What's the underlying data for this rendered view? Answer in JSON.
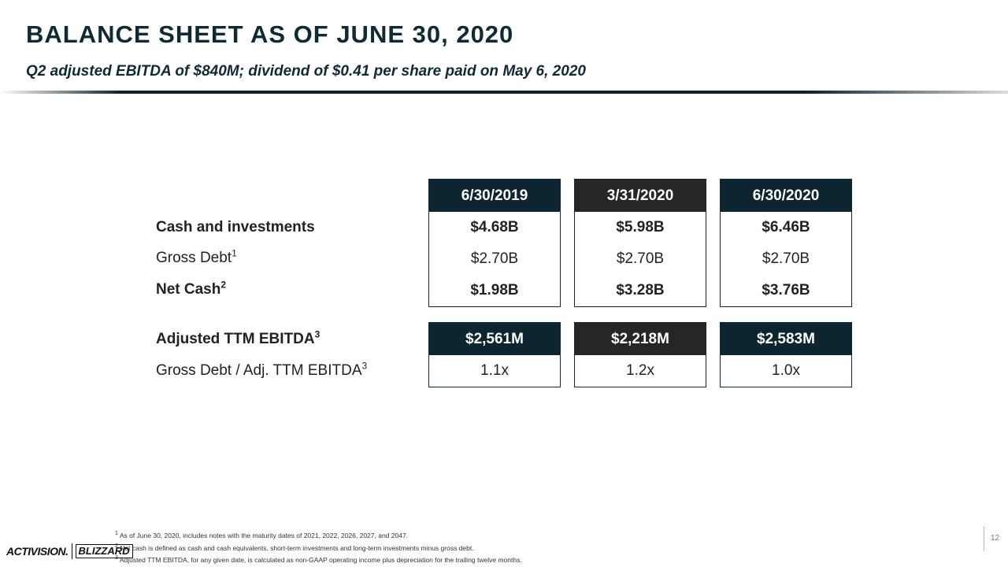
{
  "slide": {
    "title": "BALANCE SHEET AS OF JUNE 30, 2020",
    "subtitle": "Q2 adjusted EBITDA of $840M; dividend of $0.41 per share paid on May 6, 2020",
    "page_number": "12"
  },
  "colors": {
    "navy": "#0c2530",
    "charcoal": "#262626"
  },
  "table": {
    "columns": [
      "6/30/2019",
      "3/31/2020",
      "6/30/2020"
    ],
    "rows": [
      {
        "label": "Cash and investments",
        "sup": "",
        "values": [
          "$4.68B",
          "$5.98B",
          "$6.46B"
        ]
      },
      {
        "label": "Gross Debt",
        "sup": "1",
        "values": [
          "$2.70B",
          "$2.70B",
          "$2.70B"
        ]
      },
      {
        "label": "Net Cash",
        "sup": "2",
        "values": [
          "$1.98B",
          "$3.28B",
          "$3.76B"
        ]
      }
    ],
    "ebitda": {
      "label": "Adjusted TTM EBITDA",
      "sup": "3",
      "values": [
        "$2,561M",
        "$2,218M",
        "$2,583M"
      ]
    },
    "ratio": {
      "label": "Gross Debt / Adj. TTM EBITDA",
      "sup": "3",
      "values": [
        "1.1x",
        "1.2x",
        "1.0x"
      ]
    }
  },
  "footnotes": [
    {
      "num": "1",
      "text": "As of June 30, 2020, includes notes with the maturity dates of 2021, 2022, 2026, 2027, and 2047."
    },
    {
      "num": "2",
      "text": "Net cash is defined as cash and cash equivalents, short-term investments and long-term investments minus gross debt."
    },
    {
      "num": "3",
      "text": "Adjusted TTM EBITDA, for any given date, is calculated as non-GAAP operating income plus depreciation for the trailing twelve months."
    }
  ],
  "logo": {
    "left": "ACTIVISION.",
    "right": "BLIZZARD"
  }
}
